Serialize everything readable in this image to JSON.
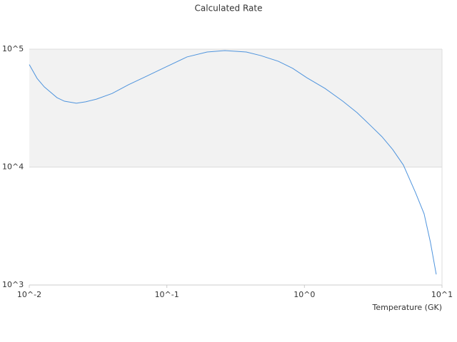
{
  "chart_data": {
    "type": "line",
    "title": "Calculated Rate",
    "x_label": "Temperature (GK)",
    "x_log": true,
    "y_log": true,
    "xlim": [
      0.01,
      10
    ],
    "ylim": [
      1000,
      100000
    ],
    "xticks": [
      {
        "value": 0.01,
        "label": "10^-2"
      },
      {
        "value": 0.1,
        "label": "10^-1"
      },
      {
        "value": 1,
        "label": "10^0"
      },
      {
        "value": 10,
        "label": "10^1"
      }
    ],
    "yticks": [
      {
        "value": 1000,
        "label": "10^3"
      },
      {
        "value": 10000,
        "label": "10^4"
      },
      {
        "value": 100000,
        "label": "10^5"
      }
    ],
    "grid": true,
    "alternate_bands": true,
    "band_color": "#f2f2f2",
    "series": [
      {
        "color": "#4f94dd",
        "x": [
          0.01,
          0.0114,
          0.01285,
          0.0159,
          0.018,
          0.022,
          0.0257,
          0.0308,
          0.04,
          0.0526,
          0.071,
          0.0957,
          0.14,
          0.196,
          0.264,
          0.378,
          0.48,
          0.647,
          0.822,
          1.04,
          1.41,
          1.9,
          2.41,
          3.06,
          3.66,
          4.38,
          5.24,
          6.41,
          7.41,
          8.24,
          9.08
        ],
        "values": [
          74000,
          56500,
          47900,
          38800,
          36200,
          34800,
          35800,
          37700,
          42100,
          49900,
          58900,
          69600,
          85900,
          94600,
          97300,
          94600,
          88300,
          78900,
          68700,
          57300,
          46500,
          36200,
          29000,
          22200,
          18100,
          14100,
          10400,
          6100,
          4020,
          2300,
          1230
        ]
      }
    ]
  }
}
